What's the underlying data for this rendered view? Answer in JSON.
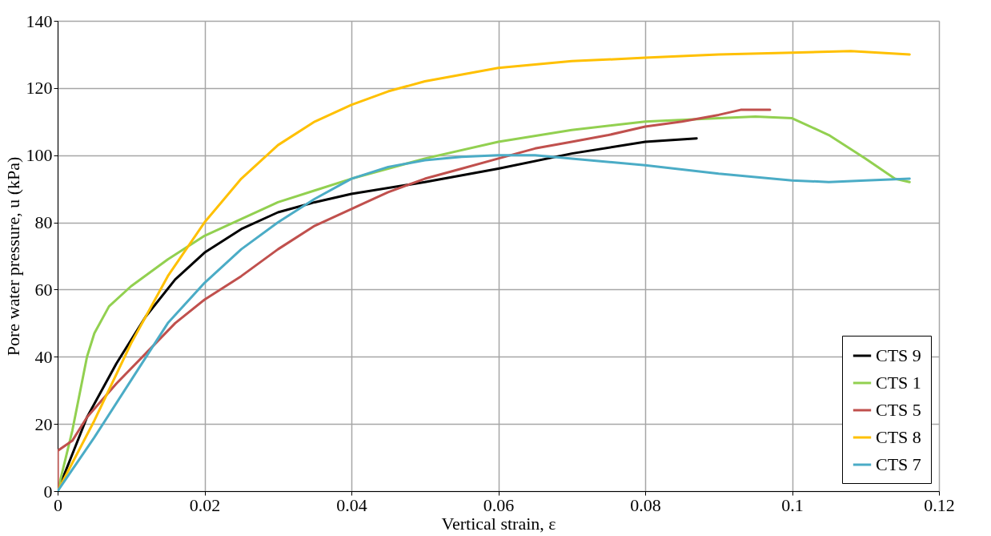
{
  "chart_data": {
    "type": "line",
    "xlabel": "Vertical strain, ε",
    "ylabel": "Pore water pressure, u (kPa)",
    "xlim": [
      0,
      0.12
    ],
    "xticks": [
      0,
      0.02,
      0.04,
      0.06,
      0.08,
      0.1,
      0.12
    ],
    "ylim": [
      0,
      140
    ],
    "yticks": [
      0,
      20,
      40,
      60,
      80,
      100,
      120,
      140
    ],
    "grid": true,
    "legend": "bottom right",
    "marker": "none",
    "line_style": "solid",
    "series": [
      {
        "name": "CTS 9",
        "color": "#000000",
        "x": [
          0,
          0.004,
          0.008,
          0.012,
          0.016,
          0.02,
          0.025,
          0.03,
          0.035,
          0.04,
          0.05,
          0.06,
          0.07,
          0.08,
          0.087
        ],
        "values": [
          0,
          22,
          38,
          52,
          63,
          71,
          78,
          83,
          86,
          88.5,
          92,
          96,
          100.5,
          104,
          105
        ]
      },
      {
        "name": "CTS 1",
        "color": "#92d050",
        "x": [
          0,
          0.002,
          0.004,
          0.005,
          0.007,
          0.01,
          0.015,
          0.02,
          0.025,
          0.03,
          0.035,
          0.04,
          0.05,
          0.06,
          0.07,
          0.08,
          0.09,
          0.095,
          0.1,
          0.105,
          0.11,
          0.114,
          0.116
        ],
        "values": [
          0,
          18,
          40,
          47,
          55,
          61,
          69,
          76,
          81,
          86,
          89.5,
          93,
          99,
          104,
          107.5,
          110,
          111,
          111.5,
          111,
          106,
          99,
          93,
          92
        ]
      },
      {
        "name": "CTS 5",
        "color": "#c0504d",
        "x": [
          0,
          0,
          0.002,
          0.004,
          0.008,
          0.012,
          0.016,
          0.02,
          0.025,
          0.03,
          0.035,
          0.04,
          0.045,
          0.05,
          0.055,
          0.06,
          0.065,
          0.07,
          0.075,
          0.08,
          0.085,
          0.09,
          0.093,
          0.097
        ],
        "values": [
          0,
          12,
          15,
          22,
          32,
          41,
          50,
          57,
          64,
          72,
          79,
          84,
          89,
          93,
          96,
          99,
          102,
          104,
          106,
          108.5,
          110,
          112,
          113.5,
          113.5
        ]
      },
      {
        "name": "CTS 8",
        "color": "#ffc000",
        "x": [
          0,
          0.005,
          0.01,
          0.015,
          0.02,
          0.025,
          0.03,
          0.035,
          0.04,
          0.045,
          0.05,
          0.06,
          0.07,
          0.08,
          0.09,
          0.1,
          0.108,
          0.116
        ],
        "values": [
          0,
          21,
          44,
          64,
          80,
          93,
          103,
          110,
          115,
          119,
          122,
          126,
          128,
          129,
          130,
          130.5,
          131,
          130
        ]
      },
      {
        "name": "CTS 7",
        "color": "#4bacc6",
        "x": [
          0,
          0.005,
          0.01,
          0.015,
          0.02,
          0.025,
          0.03,
          0.035,
          0.04,
          0.045,
          0.05,
          0.055,
          0.06,
          0.065,
          0.07,
          0.08,
          0.09,
          0.1,
          0.105,
          0.11,
          0.116
        ],
        "values": [
          0,
          16,
          33,
          50,
          62,
          72,
          80,
          87,
          93,
          96.5,
          98.5,
          99.5,
          100,
          100,
          99,
          97,
          94.5,
          92.5,
          92,
          92.5,
          93
        ]
      }
    ]
  }
}
